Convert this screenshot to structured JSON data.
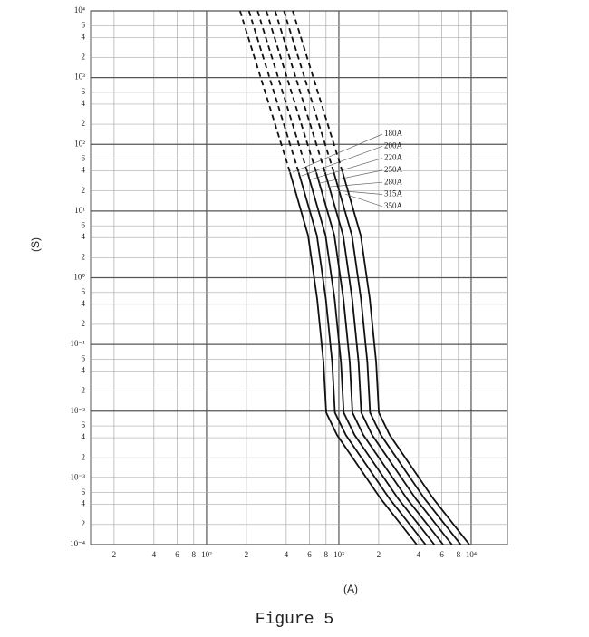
{
  "chart_data": {
    "type": "line",
    "log_x": true,
    "log_y": true,
    "grid": true,
    "xlabel": "(A)",
    "ylabel": "(S)",
    "caption": "Figure 5",
    "xlim": [
      13.3,
      18800
    ],
    "ylim": [
      0.0001,
      10000
    ],
    "xticks": [
      {
        "value": 20,
        "label": "2"
      },
      {
        "value": 40,
        "label": "4"
      },
      {
        "value": 60,
        "label": "6"
      },
      {
        "value": 80,
        "label": "8"
      },
      {
        "value": 100,
        "label": "10²"
      },
      {
        "value": 200,
        "label": "2"
      },
      {
        "value": 400,
        "label": "4"
      },
      {
        "value": 600,
        "label": "6"
      },
      {
        "value": 800,
        "label": "8"
      },
      {
        "value": 1000,
        "label": "10³"
      },
      {
        "value": 2000,
        "label": "2"
      },
      {
        "value": 4000,
        "label": "4"
      },
      {
        "value": 6000,
        "label": "6"
      },
      {
        "value": 8000,
        "label": "8"
      },
      {
        "value": 10000,
        "label": "10⁴"
      }
    ],
    "yticks": [
      {
        "value": 10000,
        "label": "10⁴"
      },
      {
        "value": 6000,
        "label": "6"
      },
      {
        "value": 4000,
        "label": "4"
      },
      {
        "value": 2000,
        "label": "2"
      },
      {
        "value": 1000,
        "label": "10³"
      },
      {
        "value": 600,
        "label": "6"
      },
      {
        "value": 400,
        "label": "4"
      },
      {
        "value": 200,
        "label": "2"
      },
      {
        "value": 100,
        "label": "10²"
      },
      {
        "value": 60,
        "label": "6"
      },
      {
        "value": 40,
        "label": "4"
      },
      {
        "value": 20,
        "label": "2"
      },
      {
        "value": 10,
        "label": "10¹"
      },
      6,
      4,
      2,
      {
        "value": 1,
        "label": "10⁰"
      },
      {
        "value": 0.6,
        "label": "6"
      },
      {
        "value": 0.4,
        "label": "4"
      },
      {
        "value": 0.2,
        "label": "2"
      },
      {
        "value": 0.1,
        "label": "10⁻¹"
      },
      {
        "value": 0.06,
        "label": "6"
      },
      {
        "value": 0.04,
        "label": "4"
      },
      {
        "value": 0.02,
        "label": "2"
      },
      {
        "value": 0.01,
        "label": "10⁻²"
      },
      {
        "value": 0.006,
        "label": "6"
      },
      {
        "value": 0.004,
        "label": "4"
      },
      {
        "value": 0.002,
        "label": "2"
      },
      {
        "value": 0.001,
        "label": "10⁻³"
      },
      {
        "value": 0.0006,
        "label": "6"
      },
      {
        "value": 0.0004,
        "label": "4"
      },
      {
        "value": 0.0002,
        "label": "2"
      },
      {
        "value": 0.0001,
        "label": "10⁻⁴"
      }
    ],
    "series": [
      {
        "name": "180A",
        "color": "#111",
        "x": [
          179,
          427,
          585,
          685,
          765,
          802,
          968,
          2066,
          3880
        ],
        "values": [
          10000,
          38,
          4.3,
          0.48,
          0.054,
          0.0095,
          0.0044,
          0.00049,
          0.0001
        ]
      },
      {
        "name": "200A",
        "color": "#111",
        "x": [
          209,
          497,
          682,
          798,
          891,
          934,
          1128,
          2407,
          4520
        ],
        "values": [
          10000,
          38,
          4.3,
          0.48,
          0.054,
          0.0095,
          0.0044,
          0.00049,
          0.0001
        ]
      },
      {
        "name": "220A",
        "color": "#111",
        "x": [
          243,
          579,
          794,
          930,
          1038,
          1088,
          1314,
          2804,
          5265
        ],
        "values": [
          10000,
          38,
          4.3,
          0.48,
          0.054,
          0.0095,
          0.0044,
          0.00049,
          0.0001
        ]
      },
      {
        "name": "250A",
        "color": "#111",
        "x": [
          283,
          675,
          925,
          1083,
          1209,
          1268,
          1530,
          3266,
          6134
        ],
        "values": [
          10000,
          38,
          4.3,
          0.48,
          0.054,
          0.0095,
          0.0044,
          0.00049,
          0.0001
        ]
      },
      {
        "name": "280A",
        "color": "#111",
        "x": [
          330,
          786,
          1078,
          1262,
          1409,
          1477,
          1783,
          3806,
          7147
        ],
        "values": [
          10000,
          38,
          4.3,
          0.48,
          0.054,
          0.0095,
          0.0044,
          0.00049,
          0.0001
        ]
      },
      {
        "name": "315A",
        "color": "#111",
        "x": [
          384,
          916,
          1255,
          1470,
          1642,
          1721,
          2077,
          4434,
          8326
        ],
        "values": [
          10000,
          38,
          4.3,
          0.48,
          0.054,
          0.0095,
          0.0044,
          0.00049,
          0.0001
        ]
      },
      {
        "name": "350A",
        "color": "#111",
        "x": [
          448,
          1068,
          1463,
          1713,
          1913,
          2005,
          2420,
          5165,
          9700
        ],
        "values": [
          10000,
          38,
          4.3,
          0.48,
          0.054,
          0.0095,
          0.0044,
          0.00049,
          0.0001
        ]
      }
    ]
  }
}
